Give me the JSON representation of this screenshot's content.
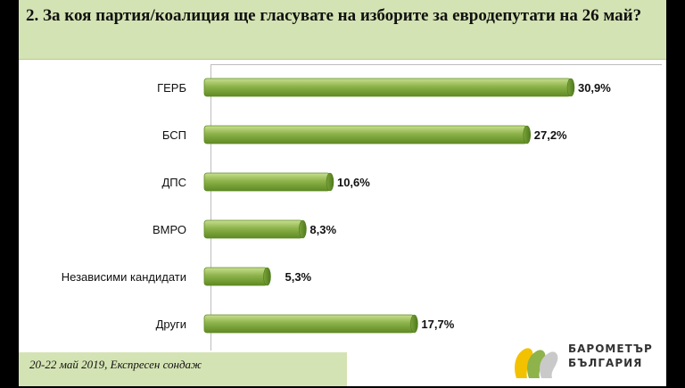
{
  "title": "2. За коя партия/коалиция ще гласувате на изборите за евродепутати на 26 май?",
  "footer": "20-22 май 2019, Експресен сондаж",
  "logo": {
    "line1": "БАРОМЕТЪР",
    "line2": "БЪЛГАРИЯ"
  },
  "colors": {
    "bar": "#8db34a",
    "bar_dark": "#5f8a24",
    "title_bg": "#d4e3b3"
  },
  "chart_data": {
    "type": "bar",
    "orientation": "horizontal",
    "categories": [
      "ГЕРБ",
      "БСП",
      "ДПС",
      "ВМРО",
      "Независими кандидати",
      "Други"
    ],
    "values": [
      30.9,
      27.2,
      10.6,
      8.3,
      5.3,
      17.7
    ],
    "labels": [
      "30,9%",
      "27,2%",
      "10,6%",
      "8,3%",
      "5,3%",
      "17,7%"
    ],
    "unit": "%",
    "xlim": [
      0,
      35
    ],
    "grid": false,
    "legend": "none"
  }
}
